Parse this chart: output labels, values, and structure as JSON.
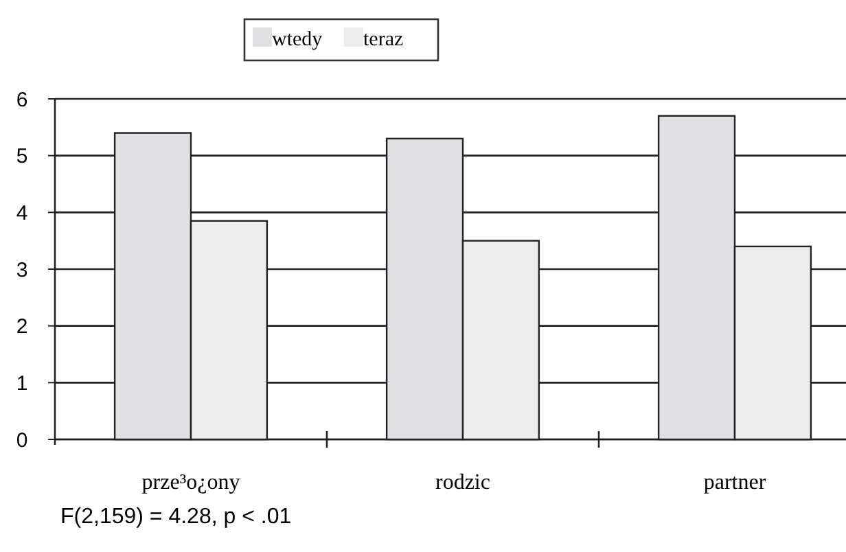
{
  "chart_data": {
    "type": "bar",
    "categories": [
      "prze³o¿ony",
      "rodzic",
      "partner"
    ],
    "series": [
      {
        "name": "wtedy",
        "color": "#e0e0e3",
        "values": [
          5.4,
          5.3,
          5.7
        ]
      },
      {
        "name": "teraz",
        "color": "#ececec",
        "values": [
          3.85,
          3.5,
          3.4
        ]
      }
    ],
    "ylim": [
      0,
      6
    ],
    "yticks": [
      0,
      1,
      2,
      3,
      4,
      5,
      6
    ],
    "grid": "y",
    "legend": "top",
    "annotations": [
      "F(2,159) = 4.28, p < .01"
    ]
  }
}
